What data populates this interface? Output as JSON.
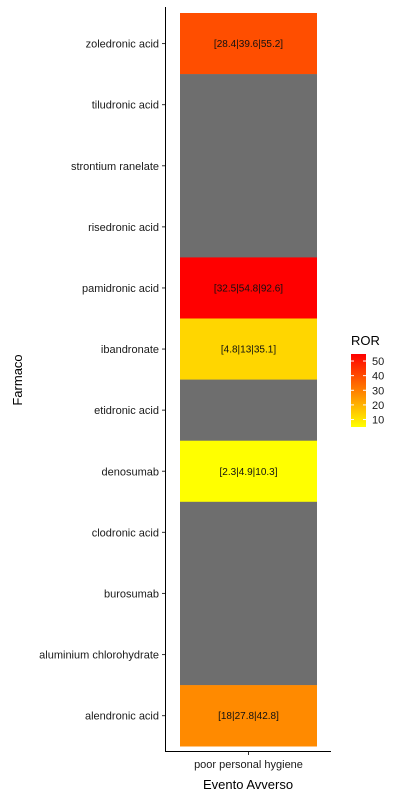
{
  "chart_data": {
    "type": "heatmap",
    "xlabel": "Evento Avverso",
    "ylabel": "Farmaco",
    "x_categories": [
      "poor personal hygiene"
    ],
    "y_categories": [
      "zoledronic acid",
      "tiludronic acid",
      "strontium ranelate",
      "risedronic acid",
      "pamidronic acid",
      "ibandronate",
      "etidronic acid",
      "denosumab",
      "clodronic acid",
      "burosumab",
      "aluminium chlorohydrate",
      "alendronic acid"
    ],
    "cells": [
      {
        "y": "zoledronic acid",
        "x": "poor personal hygiene",
        "ror": 39.6,
        "label": "[28.4|39.6|55.2]"
      },
      {
        "y": "tiludronic acid",
        "x": "poor personal hygiene",
        "ror": null,
        "label": ""
      },
      {
        "y": "strontium ranelate",
        "x": "poor personal hygiene",
        "ror": null,
        "label": ""
      },
      {
        "y": "risedronic acid",
        "x": "poor personal hygiene",
        "ror": null,
        "label": ""
      },
      {
        "y": "pamidronic acid",
        "x": "poor personal hygiene",
        "ror": 54.8,
        "label": "[32.5|54.8|92.6]"
      },
      {
        "y": "ibandronate",
        "x": "poor personal hygiene",
        "ror": 13,
        "label": "[4.8|13|35.1]"
      },
      {
        "y": "etidronic acid",
        "x": "poor personal hygiene",
        "ror": null,
        "label": ""
      },
      {
        "y": "denosumab",
        "x": "poor personal hygiene",
        "ror": 4.9,
        "label": "[2.3|4.9|10.3]"
      },
      {
        "y": "clodronic acid",
        "x": "poor personal hygiene",
        "ror": null,
        "label": ""
      },
      {
        "y": "burosumab",
        "x": "poor personal hygiene",
        "ror": null,
        "label": ""
      },
      {
        "y": "aluminium chlorohydrate",
        "x": "poor personal hygiene",
        "ror": null,
        "label": ""
      },
      {
        "y": "alendronic acid",
        "x": "poor personal hygiene",
        "ror": 27.8,
        "label": "[18|27.8|42.8]"
      }
    ],
    "legend": {
      "title": "ROR",
      "ticks": [
        50,
        40,
        30,
        20,
        10
      ],
      "range": [
        4.9,
        54.8
      ],
      "low_color": "#ffff00",
      "high_color": "#ff0000",
      "na_color": "#6e6e6e",
      "placement": "right"
    }
  }
}
